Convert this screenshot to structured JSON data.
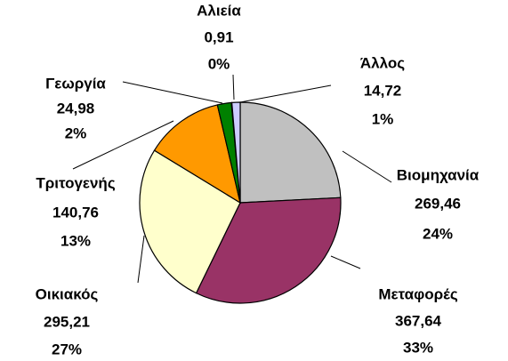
{
  "chart_data": {
    "type": "pie",
    "categories": [
      "Βιομηχανία",
      "Μεταφορές",
      "Οικιακός",
      "Τριτογενής",
      "Γεωργία",
      "Αλιεία",
      "Άλλος"
    ],
    "values": [
      269.46,
      367.64,
      295.21,
      140.76,
      24.98,
      0.91,
      14.72
    ],
    "value_labels": [
      "269,46",
      "367,64",
      "295,21",
      "140,76",
      "24,98",
      "0,91",
      "14,72"
    ],
    "percent_labels": [
      "24%",
      "33%",
      "27%",
      "13%",
      "2%",
      "0%",
      "1%"
    ],
    "colors": [
      "#c0c0c0",
      "#993366",
      "#ffffcc",
      "#ff9900",
      "#008000",
      "#000080",
      "#ccccff"
    ]
  }
}
